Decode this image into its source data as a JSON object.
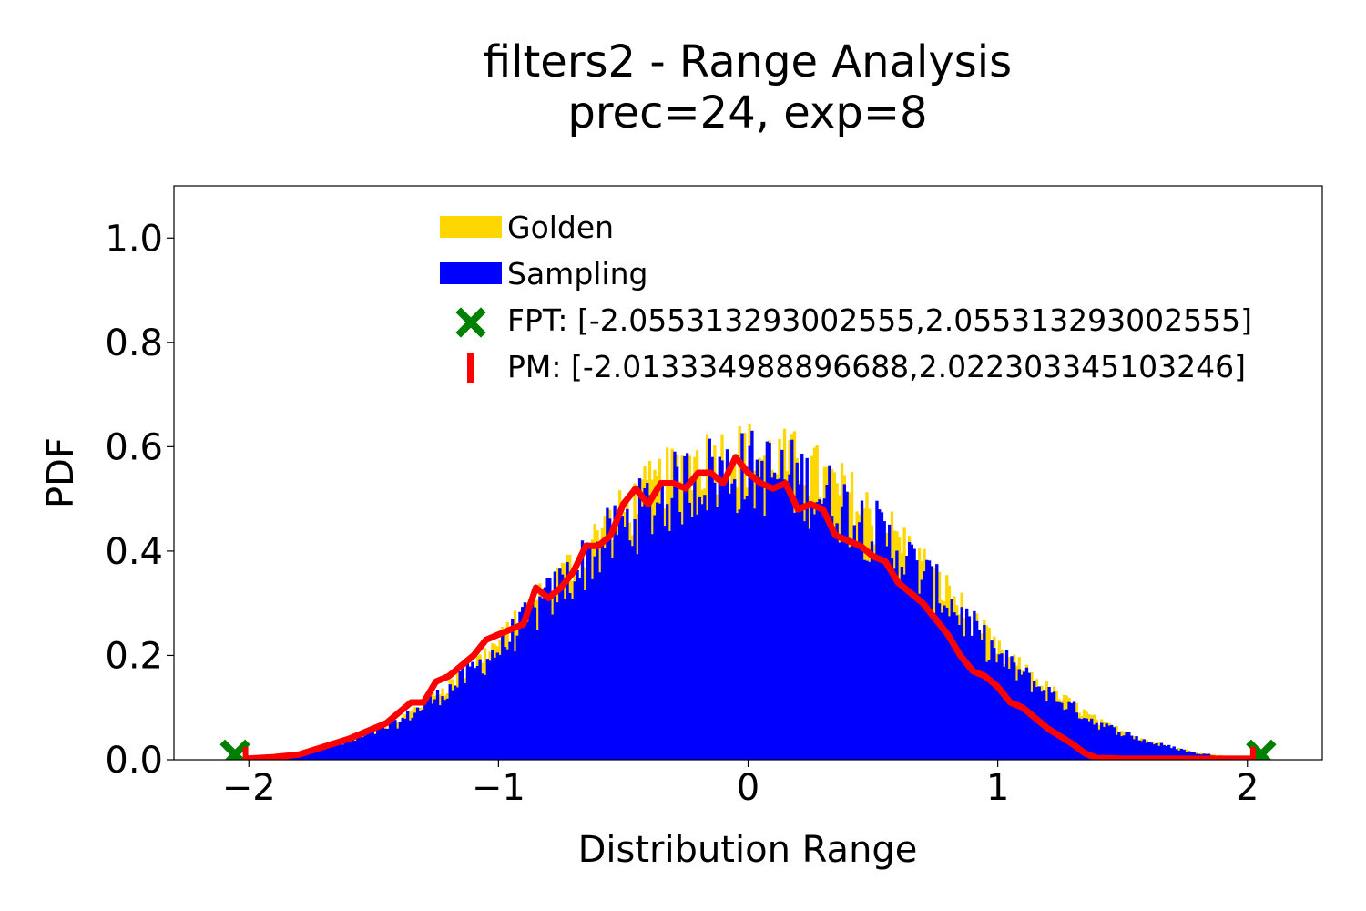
{
  "chart_data": {
    "type": "bar",
    "title": "filters2 - Range Analysis",
    "subtitle": "prec=24, exp=8",
    "xlabel": "Distribution Range",
    "ylabel": "PDF",
    "xlim": [
      -2.3,
      2.3
    ],
    "ylim": [
      0.0,
      1.1
    ],
    "xticks": [
      {
        "value": -2,
        "label": "−2"
      },
      {
        "value": -1,
        "label": "−1"
      },
      {
        "value": 0,
        "label": "0"
      },
      {
        "value": 1,
        "label": "1"
      },
      {
        "value": 2,
        "label": "2"
      }
    ],
    "yticks": [
      {
        "value": 0.0,
        "label": "0.0"
      },
      {
        "value": 0.2,
        "label": "0.2"
      },
      {
        "value": 0.4,
        "label": "0.4"
      },
      {
        "value": 0.6,
        "label": "0.6"
      },
      {
        "value": 0.8,
        "label": "0.8"
      },
      {
        "value": 1.0,
        "label": "1.0"
      }
    ],
    "grid": false,
    "legend_position": "upper-center",
    "legend": [
      {
        "label": "Golden",
        "marker": "bar",
        "color": "#FFD700"
      },
      {
        "label": "Sampling",
        "marker": "bar",
        "color": "#0000FF"
      },
      {
        "label": "FPT: [-2.055313293002555,2.055313293002555]",
        "marker": "x",
        "color": "#008000"
      },
      {
        "label": "PM: [-2.013334988896688,2.022303345103246]",
        "marker": "vline",
        "color": "#FF0000"
      }
    ],
    "histogram_bin_width": 0.01,
    "series": [
      {
        "name": "Golden",
        "color": "#FFD700",
        "kind": "histogram",
        "x": [
          -2.0,
          -1.8,
          -1.6,
          -1.4,
          -1.2,
          -1.0,
          -0.8,
          -0.6,
          -0.4,
          -0.2,
          0.0,
          0.2,
          0.4,
          0.6,
          0.8,
          1.0,
          1.2,
          1.4,
          1.6,
          1.8,
          2.0
        ],
        "y": [
          0.005,
          0.015,
          0.035,
          0.075,
          0.14,
          0.22,
          0.32,
          0.42,
          0.5,
          0.56,
          0.57,
          0.55,
          0.49,
          0.41,
          0.31,
          0.2,
          0.13,
          0.07,
          0.035,
          0.012,
          0.004
        ]
      },
      {
        "name": "Sampling",
        "color": "#0000FF",
        "kind": "histogram",
        "x": [
          -2.0,
          -1.8,
          -1.6,
          -1.4,
          -1.2,
          -1.0,
          -0.8,
          -0.6,
          -0.4,
          -0.2,
          0.0,
          0.2,
          0.4,
          0.6,
          0.8,
          1.0,
          1.2,
          1.4,
          1.6,
          1.8,
          2.0
        ],
        "y": [
          0.005,
          0.015,
          0.035,
          0.075,
          0.14,
          0.22,
          0.32,
          0.42,
          0.5,
          0.56,
          0.57,
          0.55,
          0.49,
          0.41,
          0.31,
          0.2,
          0.13,
          0.07,
          0.035,
          0.012,
          0.004
        ]
      },
      {
        "name": "PM",
        "color": "#FF0000",
        "kind": "line",
        "x": [
          -2.01,
          -1.9,
          -1.8,
          -1.7,
          -1.6,
          -1.5,
          -1.45,
          -1.35,
          -1.3,
          -1.25,
          -1.2,
          -1.15,
          -1.1,
          -1.05,
          -1.0,
          -0.95,
          -0.9,
          -0.85,
          -0.8,
          -0.75,
          -0.7,
          -0.65,
          -0.6,
          -0.55,
          -0.5,
          -0.45,
          -0.4,
          -0.35,
          -0.3,
          -0.25,
          -0.2,
          -0.15,
          -0.1,
          -0.05,
          0.0,
          0.05,
          0.1,
          0.15,
          0.2,
          0.25,
          0.3,
          0.35,
          0.4,
          0.45,
          0.5,
          0.55,
          0.6,
          0.65,
          0.7,
          0.75,
          0.8,
          0.85,
          0.9,
          0.95,
          1.0,
          1.05,
          1.1,
          1.15,
          1.2,
          1.25,
          1.3,
          1.35,
          1.4,
          1.45,
          1.5,
          1.55,
          1.6,
          1.7,
          1.8,
          1.9,
          2.02
        ],
        "y": [
          0.002,
          0.005,
          0.01,
          0.025,
          0.04,
          0.06,
          0.07,
          0.11,
          0.11,
          0.15,
          0.16,
          0.18,
          0.2,
          0.23,
          0.24,
          0.25,
          0.26,
          0.33,
          0.31,
          0.33,
          0.36,
          0.41,
          0.41,
          0.43,
          0.49,
          0.52,
          0.49,
          0.53,
          0.53,
          0.52,
          0.55,
          0.55,
          0.53,
          0.58,
          0.55,
          0.53,
          0.52,
          0.53,
          0.48,
          0.49,
          0.48,
          0.43,
          0.42,
          0.41,
          0.39,
          0.38,
          0.34,
          0.32,
          0.3,
          0.27,
          0.24,
          0.2,
          0.17,
          0.16,
          0.14,
          0.11,
          0.1,
          0.08,
          0.06,
          0.045,
          0.03,
          0.012,
          0.003,
          0.003,
          0.002,
          0.002,
          0.002,
          0.002,
          0.002,
          0.002,
          0.002
        ]
      }
    ],
    "markers": {
      "fpt": {
        "x": [
          -2.055313293002555,
          2.055313293002555
        ],
        "y": 0.01,
        "color": "#008000"
      },
      "pm": {
        "x": [
          -2.013334988896688,
          2.022303345103246
        ],
        "y": 0.0,
        "color": "#FF0000"
      }
    }
  }
}
